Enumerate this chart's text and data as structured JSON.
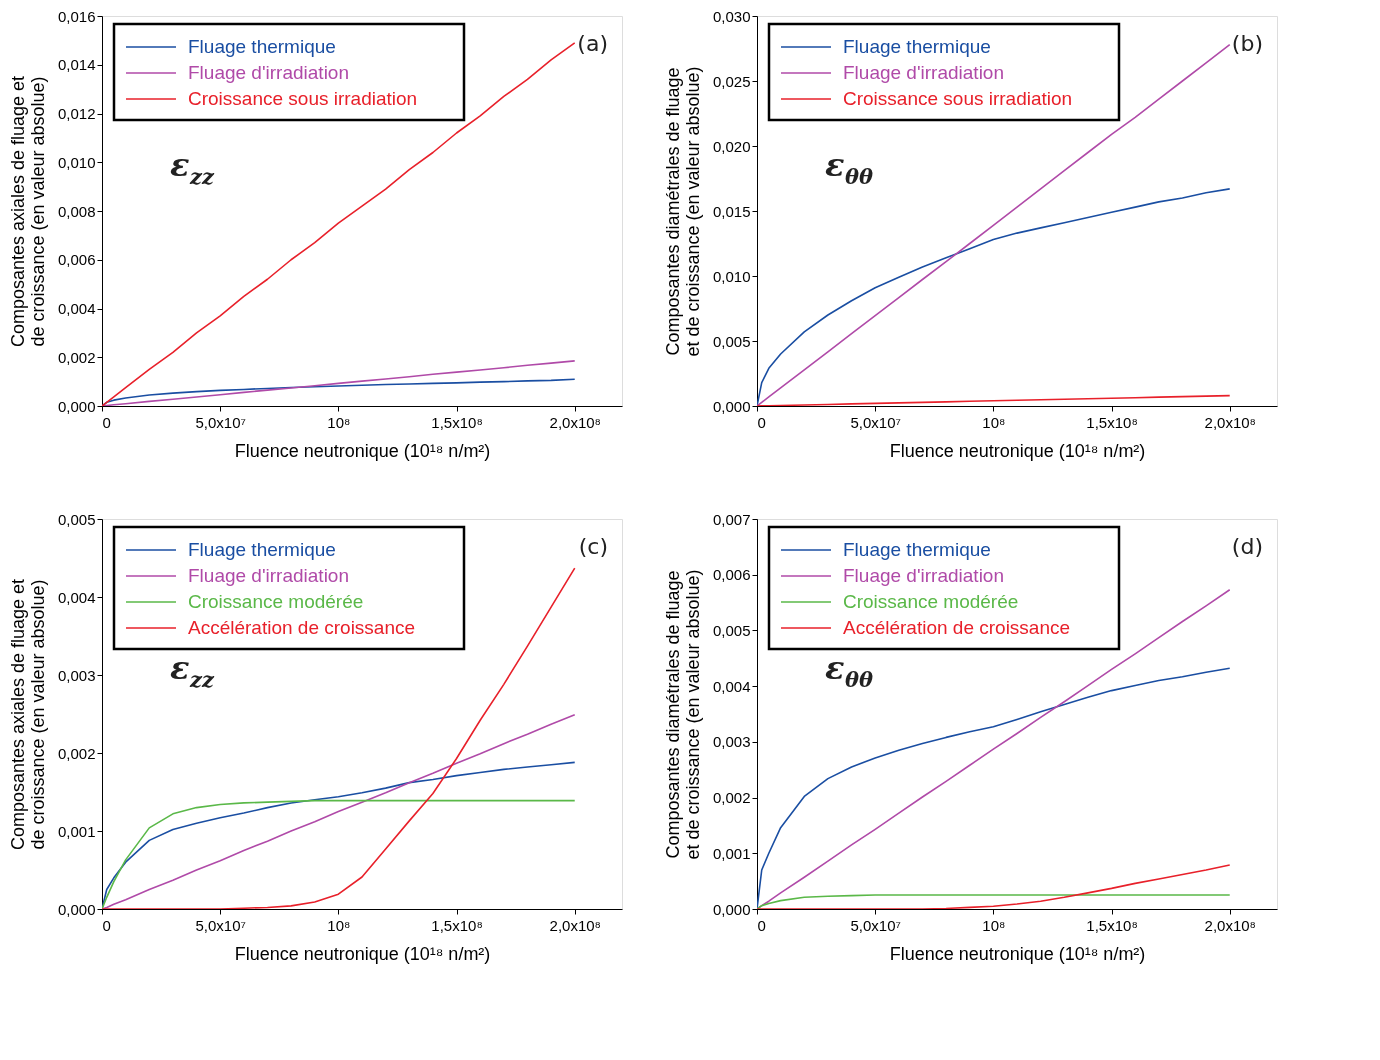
{
  "chart_data": [
    {
      "type": "line",
      "xlabel": "Fluence neutronique (10¹⁸ n/m²)",
      "ylabel": "Composantes axiales de fluage et\nde croissance (en valeur absolue)",
      "legend": "top left",
      "grid": false,
      "line_style": "solid",
      "marker": "none",
      "annotations": [
        "(a)",
        "ε$_{zz}$"
      ],
      "xlim": [
        0,
        220000000
      ],
      "xticks": [
        {
          "value": 0,
          "label": "0"
        },
        {
          "value": 50000000,
          "label": "5,0x10⁷"
        },
        {
          "value": 100000000,
          "label": "10⁸"
        },
        {
          "value": 150000000,
          "label": "1,5x10⁸"
        },
        {
          "value": 200000000,
          "label": "2,0x10⁸"
        }
      ],
      "ylim": [
        0,
        0.016
      ],
      "yticks": [
        {
          "value": 0,
          "label": "0,000"
        },
        {
          "value": 0.002,
          "label": "0,002"
        },
        {
          "value": 0.004,
          "label": "0,004"
        },
        {
          "value": 0.006,
          "label": "0,006"
        },
        {
          "value": 0.008,
          "label": "0,008"
        },
        {
          "value": 0.01,
          "label": "0,010"
        },
        {
          "value": 0.012,
          "label": "0,012"
        },
        {
          "value": 0.014,
          "label": "0,014"
        },
        {
          "value": 0.016,
          "label": "0,016"
        }
      ],
      "x": [
        0,
        2000000,
        5000000,
        10000000,
        20000000,
        30000000,
        40000000,
        50000000,
        60000000,
        70000000,
        80000000,
        90000000,
        100000000,
        110000000,
        120000000,
        130000000,
        140000000,
        150000000,
        160000000,
        170000000,
        180000000,
        190000000,
        200000000
      ],
      "series": [
        {
          "name": "Fluage thermique",
          "color": "#1a4ea2",
          "values": [
            0,
            0.00015,
            0.00024,
            0.00033,
            0.00045,
            0.00053,
            0.00059,
            0.00064,
            0.00068,
            0.00072,
            0.00076,
            0.00079,
            0.00082,
            0.00085,
            0.00088,
            0.0009,
            0.00093,
            0.00095,
            0.00098,
            0.001,
            0.00103,
            0.00105,
            0.0011
          ]
        },
        {
          "name": "Fluage d'irradiation",
          "color": "#b04aa8",
          "values": [
            0,
            2e-05,
            5e-05,
            9e-05,
            0.00019,
            0.00028,
            0.00037,
            0.00046,
            0.00056,
            0.00065,
            0.00074,
            0.00083,
            0.00093,
            0.00102,
            0.00111,
            0.0012,
            0.0013,
            0.00139,
            0.00148,
            0.00157,
            0.00167,
            0.00176,
            0.00185
          ]
        },
        {
          "name": "Croissance sous irradiation",
          "color": "#e8202a",
          "values": [
            0,
            0.00015,
            0.00037,
            0.00075,
            0.0015,
            0.0022,
            0.003,
            0.0037,
            0.0045,
            0.0052,
            0.006,
            0.0067,
            0.0075,
            0.0082,
            0.0089,
            0.0097,
            0.0104,
            0.0112,
            0.0119,
            0.0127,
            0.0134,
            0.0142,
            0.0149
          ]
        }
      ]
    },
    {
      "type": "line",
      "xlabel": "Fluence neutronique (10¹⁸ n/m²)",
      "ylabel": "Composantes diamétrales de fluage\net de croissance (en valeur absolue)",
      "legend": "top left",
      "grid": false,
      "line_style": "solid",
      "marker": "none",
      "annotations": [
        "(b)",
        "ε$_{θθ}$"
      ],
      "xlim": [
        0,
        220000000
      ],
      "xticks": [
        {
          "value": 0,
          "label": "0"
        },
        {
          "value": 50000000,
          "label": "5,0x10⁷"
        },
        {
          "value": 100000000,
          "label": "10⁸"
        },
        {
          "value": 150000000,
          "label": "1,5x10⁸"
        },
        {
          "value": 200000000,
          "label": "2,0x10⁸"
        }
      ],
      "ylim": [
        0,
        0.03
      ],
      "yticks": [
        {
          "value": 0,
          "label": "0,000"
        },
        {
          "value": 0.005,
          "label": "0,005"
        },
        {
          "value": 0.01,
          "label": "0,010"
        },
        {
          "value": 0.015,
          "label": "0,015"
        },
        {
          "value": 0.02,
          "label": "0,020"
        },
        {
          "value": 0.025,
          "label": "0,025"
        },
        {
          "value": 0.03,
          "label": "0,030"
        }
      ],
      "x": [
        0,
        2000000,
        5000000,
        10000000,
        20000000,
        30000000,
        40000000,
        50000000,
        60000000,
        70000000,
        80000000,
        90000000,
        100000000,
        110000000,
        120000000,
        130000000,
        140000000,
        150000000,
        160000000,
        170000000,
        180000000,
        190000000,
        200000000
      ],
      "series": [
        {
          "name": "Fluage thermique",
          "color": "#1a4ea2",
          "values": [
            0,
            0.0018,
            0.0029,
            0.004,
            0.0057,
            0.007,
            0.0081,
            0.0091,
            0.0099,
            0.0107,
            0.0114,
            0.0121,
            0.0128,
            0.0133,
            0.0137,
            0.0141,
            0.0145,
            0.0149,
            0.0153,
            0.0157,
            0.016,
            0.0164,
            0.0167
          ]
        },
        {
          "name": "Fluage d'irradiation",
          "color": "#b04aa8",
          "values": [
            0,
            0.00028,
            0.0007,
            0.00139,
            0.00278,
            0.00417,
            0.00556,
            0.00695,
            0.00834,
            0.00973,
            0.0111,
            0.0125,
            0.0139,
            0.0153,
            0.0167,
            0.0181,
            0.0195,
            0.0209,
            0.0222,
            0.0236,
            0.025,
            0.0264,
            0.0278
          ]
        },
        {
          "name": "Croissance sous irradiation",
          "color": "#e8202a",
          "values": [
            0,
            1e-05,
            2e-05,
            4e-05,
            8e-05,
            0.00012,
            0.00016,
            0.0002,
            0.00024,
            0.00028,
            0.00032,
            0.00036,
            0.0004,
            0.00044,
            0.00048,
            0.00052,
            0.00056,
            0.0006,
            0.00064,
            0.00068,
            0.00072,
            0.00076,
            0.0008
          ]
        }
      ]
    },
    {
      "type": "line",
      "xlabel": "Fluence neutronique (10¹⁸ n/m²)",
      "ylabel": "Composantes axiales de fluage et\nde croissance (en valeur absolue)",
      "legend": "top left",
      "grid": false,
      "line_style": "solid",
      "marker": "none",
      "annotations": [
        "(c)",
        "ε$_{zz}$"
      ],
      "xlim": [
        0,
        220000000
      ],
      "xticks": [
        {
          "value": 0,
          "label": "0"
        },
        {
          "value": 50000000,
          "label": "5,0x10⁷"
        },
        {
          "value": 100000000,
          "label": "10⁸"
        },
        {
          "value": 150000000,
          "label": "1,5x10⁸"
        },
        {
          "value": 200000000,
          "label": "2,0x10⁸"
        }
      ],
      "ylim": [
        0,
        0.005
      ],
      "yticks": [
        {
          "value": 0,
          "label": "0,000"
        },
        {
          "value": 0.001,
          "label": "0,001"
        },
        {
          "value": 0.002,
          "label": "0,002"
        },
        {
          "value": 0.003,
          "label": "0,003"
        },
        {
          "value": 0.004,
          "label": "0,004"
        },
        {
          "value": 0.005,
          "label": "0,005"
        }
      ],
      "x": [
        0,
        2000000,
        5000000,
        10000000,
        20000000,
        30000000,
        40000000,
        50000000,
        60000000,
        70000000,
        80000000,
        90000000,
        100000000,
        110000000,
        120000000,
        130000000,
        140000000,
        150000000,
        160000000,
        170000000,
        180000000,
        190000000,
        200000000
      ],
      "series": [
        {
          "name": "Fluage thermique",
          "color": "#1a4ea2",
          "values": [
            0,
            0.00025,
            0.0004,
            0.0006,
            0.00088,
            0.00102,
            0.0011,
            0.00117,
            0.00123,
            0.0013,
            0.00136,
            0.0014,
            0.00144,
            0.00149,
            0.00155,
            0.00162,
            0.00166,
            0.00171,
            0.00175,
            0.00179,
            0.00182,
            0.00185,
            0.00188
          ]
        },
        {
          "name": "Fluage d'irradiation",
          "color": "#b04aa8",
          "values": [
            0,
            2e-05,
            6e-05,
            0.00012,
            0.00025,
            0.00037,
            0.0005,
            0.00062,
            0.00075,
            0.00087,
            0.001,
            0.00112,
            0.00125,
            0.00137,
            0.00149,
            0.00162,
            0.00174,
            0.00187,
            0.00199,
            0.00212,
            0.00224,
            0.00237,
            0.00249
          ]
        },
        {
          "name": "Croissance modérée",
          "color": "#5ab848",
          "values": [
            0,
            0.00015,
            0.00035,
            0.00063,
            0.00104,
            0.00122,
            0.0013,
            0.00134,
            0.00136,
            0.00137,
            0.00138,
            0.00139,
            0.00139,
            0.00139,
            0.00139,
            0.00139,
            0.00139,
            0.00139,
            0.00139,
            0.00139,
            0.00139,
            0.00139,
            0.00139
          ]
        },
        {
          "name": "Accélération de croissance",
          "color": "#e8202a",
          "values": [
            0,
            0,
            0,
            0,
            0,
            0,
            0,
            0,
            1e-05,
            2e-05,
            4e-05,
            9e-05,
            0.00019,
            0.00041,
            0.00077,
            0.00113,
            0.00148,
            0.00193,
            0.00242,
            0.00288,
            0.00337,
            0.00387,
            0.00437
          ]
        }
      ]
    },
    {
      "type": "line",
      "xlabel": "Fluence neutronique (10¹⁸ n/m²)",
      "ylabel": "Composantes diamétrales de fluage\net de croissance (en valeur absolue)",
      "legend": "top left",
      "grid": false,
      "line_style": "solid",
      "marker": "none",
      "annotations": [
        "(d)",
        "ε$_{θθ}$"
      ],
      "xlim": [
        0,
        220000000
      ],
      "xticks": [
        {
          "value": 0,
          "label": "0"
        },
        {
          "value": 50000000,
          "label": "5,0x10⁷"
        },
        {
          "value": 100000000,
          "label": "10⁸"
        },
        {
          "value": 150000000,
          "label": "1,5x10⁸"
        },
        {
          "value": 200000000,
          "label": "2,0x10⁸"
        }
      ],
      "ylim": [
        0,
        0.007
      ],
      "yticks": [
        {
          "value": 0,
          "label": "0,000"
        },
        {
          "value": 0.001,
          "label": "0,001"
        },
        {
          "value": 0.002,
          "label": "0,002"
        },
        {
          "value": 0.003,
          "label": "0,003"
        },
        {
          "value": 0.004,
          "label": "0,004"
        },
        {
          "value": 0.005,
          "label": "0,005"
        },
        {
          "value": 0.006,
          "label": "0,006"
        },
        {
          "value": 0.007,
          "label": "0,007"
        }
      ],
      "x": [
        0,
        2000000,
        5000000,
        10000000,
        20000000,
        30000000,
        40000000,
        50000000,
        60000000,
        70000000,
        80000000,
        90000000,
        100000000,
        110000000,
        120000000,
        130000000,
        140000000,
        150000000,
        160000000,
        170000000,
        180000000,
        190000000,
        200000000
      ],
      "series": [
        {
          "name": "Fluage thermique",
          "color": "#1a4ea2",
          "values": [
            0,
            0.0007,
            0.001,
            0.00146,
            0.00202,
            0.00234,
            0.00255,
            0.00271,
            0.00285,
            0.00297,
            0.00308,
            0.00318,
            0.00327,
            0.0034,
            0.00354,
            0.00367,
            0.0038,
            0.00392,
            0.00401,
            0.0041,
            0.00417,
            0.00425,
            0.00432
          ]
        },
        {
          "name": "Fluage d'irradiation",
          "color": "#b04aa8",
          "values": [
            0,
            6e-05,
            0.00014,
            0.00029,
            0.00057,
            0.00086,
            0.00115,
            0.00143,
            0.00172,
            0.00201,
            0.00229,
            0.00258,
            0.00287,
            0.00315,
            0.00344,
            0.00372,
            0.00401,
            0.0043,
            0.00458,
            0.00487,
            0.00516,
            0.00544,
            0.00573
          ]
        },
        {
          "name": "Croissance modérée",
          "color": "#5ab848",
          "values": [
            0,
            6e-05,
            0.0001,
            0.00015,
            0.00021,
            0.00023,
            0.00024,
            0.00025,
            0.00025,
            0.00025,
            0.00025,
            0.00025,
            0.00025,
            0.00025,
            0.00025,
            0.00025,
            0.00025,
            0.00025,
            0.00025,
            0.00025,
            0.00025,
            0.00025,
            0.00025
          ]
        },
        {
          "name": "Accélération de croissance",
          "color": "#e8202a",
          "values": [
            0,
            0,
            0,
            0,
            0,
            0,
            0,
            0,
            0,
            0,
            1e-05,
            3e-05,
            5e-05,
            9e-05,
            0.00014,
            0.00021,
            0.00029,
            0.00037,
            0.00046,
            0.00054,
            0.00062,
            0.0007,
            0.00079
          ]
        }
      ]
    }
  ]
}
